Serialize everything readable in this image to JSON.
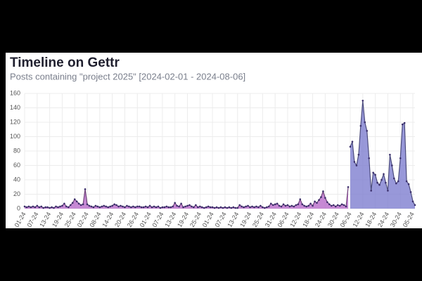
{
  "chart_data": {
    "type": "area",
    "title": "Timeline on Gettr",
    "subtitle": "Posts containing \"project 2025\" [2024-02-01 - 2024-08-06]",
    "categories": [
      "01-24",
      null,
      null,
      null,
      null,
      null,
      "07-24",
      null,
      null,
      null,
      null,
      null,
      "13-24",
      null,
      null,
      null,
      null,
      null,
      "19-24",
      null,
      null,
      null,
      null,
      null,
      "25-24",
      null,
      null,
      null,
      null,
      null,
      "02-24",
      null,
      null,
      null,
      null,
      null,
      "08-24",
      null,
      null,
      null,
      null,
      null,
      "14-24",
      null,
      null,
      null,
      null,
      null,
      "20-24",
      null,
      null,
      null,
      null,
      null,
      "26-24",
      null,
      null,
      null,
      null,
      null,
      "01-24",
      null,
      null,
      null,
      null,
      null,
      "07-24",
      null,
      null,
      null,
      null,
      null,
      "13-24",
      null,
      null,
      null,
      null,
      null,
      "19-24",
      null,
      null,
      null,
      null,
      null,
      "25-24",
      null,
      null,
      null,
      null,
      null,
      "01-24",
      null,
      null,
      null,
      null,
      null,
      "07-24",
      null,
      null,
      null,
      null,
      null,
      "13-24",
      null,
      null,
      null,
      null,
      null,
      "19-24",
      null,
      null,
      null,
      null,
      null,
      "25-24",
      null,
      null,
      null,
      null,
      null,
      "31-24",
      null,
      null,
      null,
      null,
      null,
      "06-24",
      null,
      null,
      null,
      null,
      null,
      "12-24",
      null,
      null,
      null,
      null,
      null,
      "18-24",
      null,
      null,
      null,
      null,
      null,
      "24-24",
      null,
      null,
      null,
      null,
      null,
      "30-24",
      null,
      null,
      null,
      null,
      null,
      "06-24",
      null,
      null,
      null,
      null,
      null,
      "12-24",
      null,
      null,
      null,
      null,
      null,
      "18-24",
      null,
      null,
      null,
      null,
      null,
      "24-24",
      null,
      null,
      null,
      null,
      null,
      "30-24",
      null,
      null,
      null,
      null,
      null,
      "05-24",
      null
    ],
    "series": [
      {
        "color": "#b86cc9",
        "values": [
          3,
          2,
          3,
          2,
          3,
          2,
          4,
          2,
          3,
          1,
          2,
          2,
          1,
          2,
          1,
          3,
          2,
          3,
          4,
          7,
          3,
          2,
          5,
          8,
          13,
          10,
          7,
          5,
          6,
          27,
          6,
          4,
          3,
          2,
          4,
          3,
          2,
          3,
          4,
          3,
          2,
          3,
          4,
          6,
          5,
          3,
          4,
          3,
          2,
          4,
          3,
          2,
          3,
          2,
          3,
          3,
          2,
          2,
          3,
          2,
          4,
          2,
          3,
          2,
          3,
          1,
          2,
          2,
          3,
          2,
          2,
          3,
          8,
          4,
          3,
          7,
          2,
          3,
          4,
          5,
          3,
          2,
          5,
          2,
          3,
          2,
          1,
          2,
          3,
          2,
          2,
          1,
          2,
          1,
          2,
          1,
          2,
          1,
          2,
          1,
          2,
          1,
          1,
          5,
          3,
          2,
          3,
          4,
          2,
          3,
          2,
          3,
          2,
          4,
          2,
          1,
          2,
          3,
          7,
          5,
          6,
          7,
          4,
          3,
          6,
          4,
          5,
          3,
          4,
          3,
          5,
          6,
          13,
          6,
          4,
          3,
          4,
          7,
          4,
          10,
          8,
          12,
          16,
          24,
          15,
          9,
          6,
          4,
          5,
          3,
          5,
          4,
          6,
          5,
          3,
          30,
          null,
          null,
          null,
          null,
          null,
          null,
          null,
          null,
          null,
          null,
          null,
          null,
          null,
          null,
          null,
          null,
          null,
          null,
          null,
          null,
          null,
          null,
          null,
          null,
          null,
          null,
          null,
          null,
          null,
          null,
          null,
          null
        ]
      },
      {
        "color": "#7e7ed0",
        "values": [
          null,
          null,
          null,
          null,
          null,
          null,
          null,
          null,
          null,
          null,
          null,
          null,
          null,
          null,
          null,
          null,
          null,
          null,
          null,
          null,
          null,
          null,
          null,
          null,
          null,
          null,
          null,
          null,
          null,
          null,
          null,
          null,
          null,
          null,
          null,
          null,
          null,
          null,
          null,
          null,
          null,
          null,
          null,
          null,
          null,
          null,
          null,
          null,
          null,
          null,
          null,
          null,
          null,
          null,
          null,
          null,
          null,
          null,
          null,
          null,
          null,
          null,
          null,
          null,
          null,
          null,
          null,
          null,
          null,
          null,
          null,
          null,
          null,
          null,
          null,
          null,
          null,
          null,
          null,
          null,
          null,
          null,
          null,
          null,
          null,
          null,
          null,
          null,
          null,
          null,
          null,
          null,
          null,
          null,
          null,
          null,
          null,
          null,
          null,
          null,
          null,
          null,
          null,
          null,
          null,
          null,
          null,
          null,
          null,
          null,
          null,
          null,
          null,
          null,
          null,
          null,
          null,
          null,
          null,
          null,
          null,
          null,
          null,
          null,
          null,
          null,
          null,
          null,
          null,
          null,
          null,
          null,
          null,
          null,
          null,
          null,
          null,
          null,
          null,
          null,
          null,
          null,
          null,
          null,
          null,
          null,
          null,
          null,
          null,
          null,
          null,
          null,
          null,
          null,
          null,
          null,
          86,
          93,
          65,
          60,
          75,
          115,
          150,
          120,
          108,
          70,
          25,
          50,
          47,
          36,
          33,
          40,
          48,
          36,
          25,
          75,
          60,
          42,
          35,
          38,
          70,
          117,
          119,
          38,
          34,
          23,
          10,
          5
        ]
      }
    ],
    "ylim": [
      0,
      160
    ],
    "yticks": [
      0,
      20,
      40,
      60,
      80,
      100,
      120,
      140,
      160
    ],
    "grid": true
  }
}
